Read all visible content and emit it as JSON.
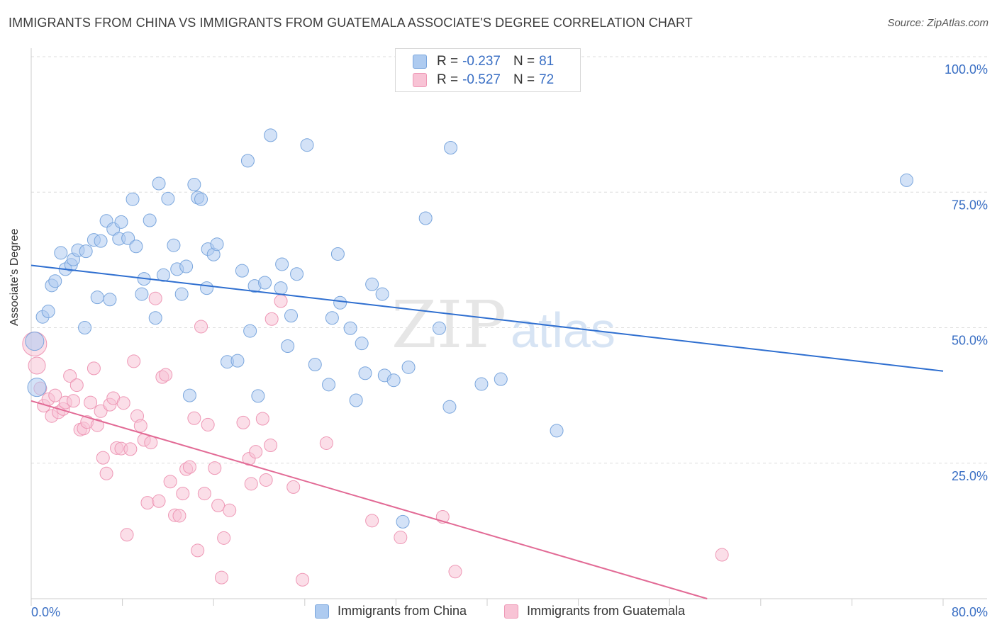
{
  "title": "IMMIGRANTS FROM CHINA VS IMMIGRANTS FROM GUATEMALA ASSOCIATE'S DEGREE CORRELATION CHART",
  "source": "Source: ZipAtlas.com",
  "watermark": {
    "zip": "ZIP",
    "atlas": "atlas"
  },
  "stats": [
    {
      "r_label": "R =",
      "r_value": "-0.237",
      "n_label": "N =",
      "n_value": "81"
    },
    {
      "r_label": "R =",
      "r_value": "-0.527",
      "n_label": "N =",
      "n_value": "72"
    }
  ],
  "colors": {
    "china_fill": "#aecbf0",
    "china_stroke": "#7aa6dd",
    "china_line": "#2f6fd0",
    "guatemala_fill": "#f8c3d5",
    "guatemala_stroke": "#ee97b5",
    "guatemala_line": "#e26a95",
    "tick_label": "#3a6fc4",
    "grid": "#dddddd"
  },
  "chart_data": {
    "type": "scatter",
    "title": "IMMIGRANTS FROM CHINA VS IMMIGRANTS FROM GUATEMALA ASSOCIATE'S DEGREE CORRELATION CHART",
    "xlabel": "",
    "ylabel": "Associate's Degree",
    "xlim": [
      0,
      80
    ],
    "ylim": [
      0,
      100
    ],
    "x_tick_labels": [
      "0.0%",
      "80.0%"
    ],
    "y_ticks": [
      25,
      50,
      75,
      100
    ],
    "y_tick_labels": [
      "25.0%",
      "50.0%",
      "75.0%",
      "100.0%"
    ],
    "grid": true,
    "legend_position": "bottom",
    "series": [
      {
        "name": "Immigrants from China",
        "r": -0.237,
        "n": 81,
        "trend": {
          "x": [
            0,
            80
          ],
          "y": [
            61.5,
            42.0
          ]
        },
        "points": [
          [
            0.3,
            47.5
          ],
          [
            0.5,
            39.0
          ],
          [
            1.0,
            52.0
          ],
          [
            1.5,
            53.0
          ],
          [
            1.8,
            57.8
          ],
          [
            2.1,
            58.6
          ],
          [
            2.6,
            63.8
          ],
          [
            3.0,
            60.8
          ],
          [
            3.5,
            61.6
          ],
          [
            3.7,
            62.6
          ],
          [
            4.1,
            64.3
          ],
          [
            4.8,
            64.1
          ],
          [
            5.5,
            66.2
          ],
          [
            4.7,
            50.0
          ],
          [
            5.8,
            55.6
          ],
          [
            6.1,
            66.0
          ],
          [
            6.6,
            69.7
          ],
          [
            6.9,
            55.2
          ],
          [
            7.2,
            68.2
          ],
          [
            7.7,
            66.4
          ],
          [
            7.9,
            69.5
          ],
          [
            8.5,
            66.5
          ],
          [
            8.9,
            73.7
          ],
          [
            9.2,
            65.0
          ],
          [
            9.7,
            56.2
          ],
          [
            9.9,
            59.0
          ],
          [
            10.4,
            69.8
          ],
          [
            10.9,
            51.8
          ],
          [
            11.2,
            76.6
          ],
          [
            11.6,
            59.7
          ],
          [
            12.0,
            73.8
          ],
          [
            12.5,
            65.2
          ],
          [
            12.8,
            60.8
          ],
          [
            13.2,
            56.2
          ],
          [
            13.6,
            61.3
          ],
          [
            13.9,
            37.5
          ],
          [
            14.3,
            76.4
          ],
          [
            14.6,
            74.0
          ],
          [
            14.9,
            73.7
          ],
          [
            15.5,
            64.5
          ],
          [
            15.4,
            57.3
          ],
          [
            16.0,
            63.5
          ],
          [
            16.3,
            65.4
          ],
          [
            17.2,
            43.7
          ],
          [
            18.1,
            43.9
          ],
          [
            18.5,
            60.5
          ],
          [
            19.0,
            80.8
          ],
          [
            19.2,
            49.4
          ],
          [
            19.6,
            57.7
          ],
          [
            19.9,
            37.4
          ],
          [
            20.5,
            58.3
          ],
          [
            21.0,
            85.5
          ],
          [
            21.9,
            57.3
          ],
          [
            22.0,
            61.7
          ],
          [
            22.5,
            46.6
          ],
          [
            22.8,
            52.2
          ],
          [
            23.3,
            59.9
          ],
          [
            24.2,
            83.7
          ],
          [
            24.9,
            43.2
          ],
          [
            26.1,
            39.5
          ],
          [
            26.4,
            51.8
          ],
          [
            26.9,
            63.6
          ],
          [
            27.1,
            54.6
          ],
          [
            28.0,
            49.9
          ],
          [
            28.5,
            36.6
          ],
          [
            29.0,
            47.1
          ],
          [
            29.3,
            41.6
          ],
          [
            29.9,
            58.0
          ],
          [
            30.8,
            56.2
          ],
          [
            31.0,
            41.2
          ],
          [
            31.8,
            40.3
          ],
          [
            32.6,
            14.2
          ],
          [
            33.1,
            42.7
          ],
          [
            34.6,
            70.2
          ],
          [
            35.8,
            49.9
          ],
          [
            36.7,
            35.4
          ],
          [
            36.8,
            83.2
          ],
          [
            39.5,
            39.6
          ],
          [
            41.2,
            40.5
          ],
          [
            46.1,
            31.0
          ],
          [
            76.8,
            77.2
          ]
        ]
      },
      {
        "name": "Immigrants from Guatemala",
        "r": -0.527,
        "n": 72,
        "trend": {
          "x": [
            0,
            59.3
          ],
          "y": [
            36.5,
            0
          ]
        },
        "points": [
          [
            0.3,
            47.0
          ],
          [
            0.5,
            43.0
          ],
          [
            0.8,
            38.8
          ],
          [
            1.1,
            35.6
          ],
          [
            1.5,
            36.8
          ],
          [
            1.8,
            33.7
          ],
          [
            2.1,
            37.5
          ],
          [
            2.4,
            34.4
          ],
          [
            2.8,
            35.0
          ],
          [
            3.0,
            36.2
          ],
          [
            3.4,
            41.1
          ],
          [
            3.7,
            36.5
          ],
          [
            4.0,
            39.4
          ],
          [
            4.3,
            31.2
          ],
          [
            4.6,
            31.4
          ],
          [
            4.9,
            32.6
          ],
          [
            5.2,
            36.2
          ],
          [
            5.5,
            42.5
          ],
          [
            5.8,
            32.0
          ],
          [
            6.1,
            34.6
          ],
          [
            6.3,
            26.0
          ],
          [
            6.6,
            23.1
          ],
          [
            6.9,
            35.8
          ],
          [
            7.2,
            37.0
          ],
          [
            7.5,
            27.8
          ],
          [
            7.9,
            27.7
          ],
          [
            8.1,
            36.1
          ],
          [
            8.4,
            11.8
          ],
          [
            8.7,
            27.6
          ],
          [
            9.0,
            43.8
          ],
          [
            9.3,
            33.7
          ],
          [
            9.6,
            31.9
          ],
          [
            9.9,
            29.3
          ],
          [
            10.2,
            17.7
          ],
          [
            10.5,
            28.8
          ],
          [
            10.9,
            55.4
          ],
          [
            11.2,
            18.0
          ],
          [
            11.5,
            40.9
          ],
          [
            11.8,
            41.3
          ],
          [
            12.2,
            21.6
          ],
          [
            12.6,
            15.4
          ],
          [
            13.0,
            15.3
          ],
          [
            13.3,
            19.4
          ],
          [
            13.6,
            23.9
          ],
          [
            13.9,
            24.3
          ],
          [
            14.3,
            33.3
          ],
          [
            14.6,
            8.9
          ],
          [
            14.9,
            50.2
          ],
          [
            15.2,
            19.4
          ],
          [
            15.5,
            32.1
          ],
          [
            16.1,
            24.1
          ],
          [
            16.4,
            17.2
          ],
          [
            16.7,
            3.9
          ],
          [
            16.9,
            11.2
          ],
          [
            17.4,
            16.3
          ],
          [
            18.6,
            32.5
          ],
          [
            19.1,
            25.8
          ],
          [
            19.3,
            21.2
          ],
          [
            19.7,
            27.1
          ],
          [
            20.3,
            33.2
          ],
          [
            20.6,
            21.9
          ],
          [
            21.0,
            28.3
          ],
          [
            21.1,
            51.6
          ],
          [
            21.9,
            54.9
          ],
          [
            23.0,
            20.6
          ],
          [
            23.8,
            3.5
          ],
          [
            25.9,
            28.7
          ],
          [
            29.9,
            14.4
          ],
          [
            32.4,
            11.3
          ],
          [
            36.1,
            15.1
          ],
          [
            37.2,
            5.0
          ],
          [
            60.6,
            8.1
          ]
        ]
      }
    ]
  },
  "legend": {
    "items": [
      "Immigrants from China",
      "Immigrants from Guatemala"
    ]
  }
}
